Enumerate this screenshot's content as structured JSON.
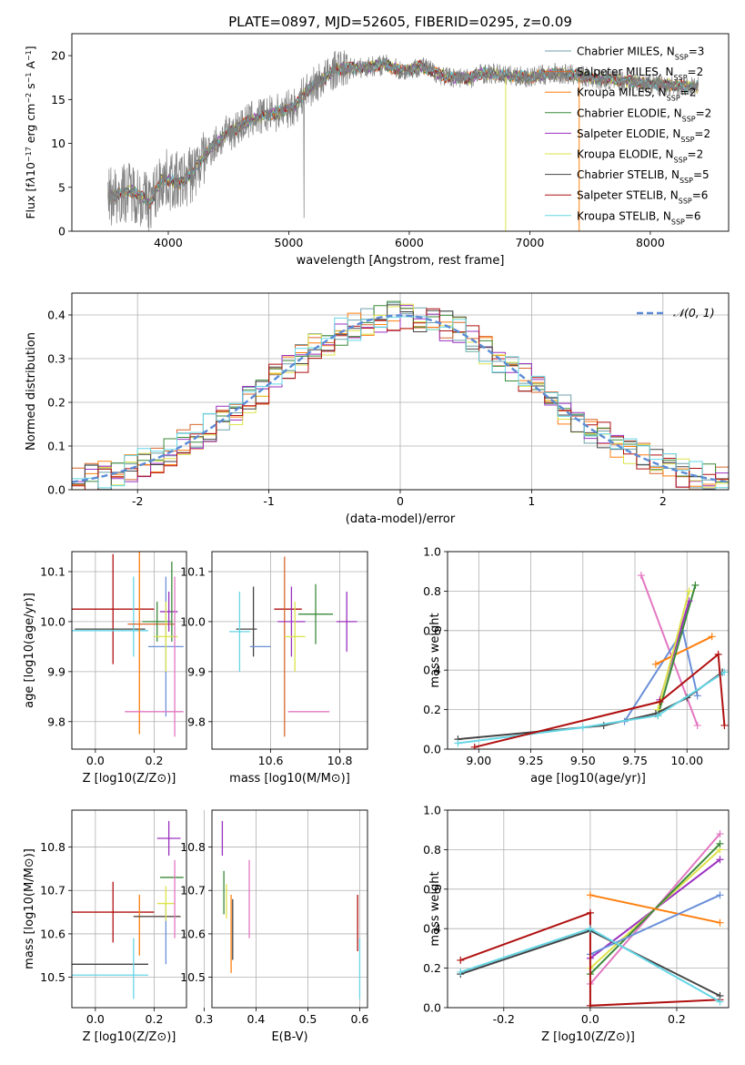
{
  "title": "PLATE=0897, MJD=52605, FIBERID=0295, z=0.09",
  "colors": {
    "Chabrier MILES": "#6fa0a8",
    "Salpeter MILES": "#d7662c",
    "Kroupa MILES": "#ff7f0e",
    "Chabrier ELODIE": "#3a8a3a",
    "Salpeter ELODIE": "#9b30c0",
    "Kroupa ELODIE": "#dde34a",
    "Chabrier STELIB": "#444444",
    "Salpeter STELIB": "#b01010",
    "Kroupa STELIB": "#66d6e6",
    "extra_pink": "#e377c2",
    "extra_blue": "#6a8fd8",
    "extra_lime": "#b5e85a",
    "extra_orange2": "#e07020",
    "spectrum_grey": "#808080"
  },
  "chart_data": [
    {
      "id": "spectrum",
      "type": "line",
      "title": "PLATE=0897, MJD=52605, FIBERID=0295, z=0.09",
      "xlabel": "wavelength [Angstrom, rest frame]",
      "ylabel_html": "Flux [f<tspan font-style='italic'>λ</tspan>10<tspan baseline-shift='super' font-size='8'>−17</tspan> erg cm<tspan baseline-shift='super' font-size='8'>−2</tspan> s<tspan baseline-shift='super' font-size='8'>−1</tspan> A<tspan baseline-shift='super' font-size='8'>−1</tspan>]",
      "xlim": [
        3200,
        8650
      ],
      "ylim": [
        0,
        22.5
      ],
      "xticks": [
        4000,
        5000,
        6000,
        7000,
        8000
      ],
      "yticks": [
        0,
        5,
        10,
        15,
        20
      ],
      "series": [
        {
          "name": "Chabrier MILES",
          "nssp": "3"
        },
        {
          "name": "Salpeter MILES",
          "nssp": "2"
        },
        {
          "name": "Kroupa MILES",
          "nssp": "2"
        },
        {
          "name": "Chabrier ELODIE",
          "nssp": "2"
        },
        {
          "name": "Salpeter ELODIE",
          "nssp": "2"
        },
        {
          "name": "Kroupa ELODIE",
          "nssp": "2"
        },
        {
          "name": "Chabrier STELIB",
          "nssp": "5"
        },
        {
          "name": "Salpeter STELIB",
          "nssp": "6"
        },
        {
          "name": "Kroupa STELIB",
          "nssp": "6"
        }
      ],
      "continuum": [
        [
          3500,
          4.0
        ],
        [
          3700,
          4.6
        ],
        [
          3850,
          3.2
        ],
        [
          3950,
          6.0
        ],
        [
          4100,
          5.5
        ],
        [
          4200,
          6.6
        ],
        [
          4350,
          9.5
        ],
        [
          4500,
          11.2
        ],
        [
          4700,
          12.8
        ],
        [
          4900,
          13.5
        ],
        [
          5050,
          14.2
        ],
        [
          5150,
          16.0
        ],
        [
          5300,
          17.5
        ],
        [
          5400,
          18.5
        ],
        [
          5600,
          18.6
        ],
        [
          5800,
          19.0
        ],
        [
          5950,
          18.2
        ],
        [
          6100,
          18.8
        ],
        [
          6300,
          17.6
        ],
        [
          6500,
          17.4
        ],
        [
          6600,
          18.0
        ],
        [
          6800,
          17.8
        ],
        [
          7000,
          17.5
        ],
        [
          7200,
          18.0
        ],
        [
          7400,
          17.7
        ],
        [
          7600,
          17.3
        ],
        [
          7800,
          17.1
        ],
        [
          8000,
          16.8
        ],
        [
          8200,
          16.6
        ],
        [
          8400,
          16.4
        ]
      ]
    },
    {
      "id": "residuals",
      "type": "histogram",
      "xlabel": "(data-model)/error",
      "ylabel": "Normed distribution",
      "legend": "𝒩(0, 1)",
      "xlim": [
        -2.5,
        2.5
      ],
      "ylim": [
        0,
        0.45
      ],
      "xticks": [
        -2,
        -1,
        0,
        1,
        2
      ],
      "yticks": [
        0.0,
        0.1,
        0.2,
        0.3,
        0.4
      ],
      "bins": 50
    },
    {
      "id": "age_vs_Z",
      "type": "scatter",
      "xlabel": "Z [log10(Z/Z⊙)]",
      "ylabel": "age  [log10(age/yr)]",
      "xlim": [
        -0.08,
        0.31
      ],
      "ylim": [
        9.745,
        10.14
      ],
      "xticks": [
        0.0,
        0.2
      ],
      "yticks": [
        9.8,
        9.9,
        10.0,
        10.1
      ],
      "points": [
        {
          "x": 0.06,
          "y": 10.025,
          "xerr": 0.14,
          "yerr": 0.11,
          "c": "Salpeter STELIB"
        },
        {
          "x": 0.05,
          "y": 9.985,
          "xerr": 0.12,
          "yerr": 0.0,
          "c": "Chabrier STELIB"
        },
        {
          "x": 0.05,
          "y": 9.982,
          "xerr": 0.13,
          "yerr": 0.0,
          "c": "Kroupa STELIB"
        },
        {
          "x": 0.13,
          "y": 10.01,
          "xerr": 0.0,
          "yerr": 0.08,
          "c": "Kroupa STELIB"
        },
        {
          "x": 0.15,
          "y": 9.965,
          "xerr": 0.0,
          "yerr": 0.19,
          "c": "Kroupa MILES"
        },
        {
          "x": 0.19,
          "y": 9.995,
          "xerr": 0.08,
          "yerr": 0.0,
          "c": "Salpeter MILES"
        },
        {
          "x": 0.21,
          "y": 10.0,
          "xerr": 0.05,
          "yerr": 0.04,
          "c": "Chabrier ELODIE"
        },
        {
          "x": 0.24,
          "y": 9.95,
          "xerr": 0.06,
          "yerr": 0.14,
          "c": "extra_blue"
        },
        {
          "x": 0.25,
          "y": 10.02,
          "xerr": 0.03,
          "yerr": 0.04,
          "c": "Salpeter ELODIE"
        },
        {
          "x": 0.26,
          "y": 10.04,
          "xerr": 0.0,
          "yerr": 0.08,
          "c": "Chabrier ELODIE"
        },
        {
          "x": 0.24,
          "y": 9.97,
          "xerr": 0.04,
          "yerr": 0.07,
          "c": "Kroupa ELODIE"
        },
        {
          "x": 0.2,
          "y": 9.82,
          "xerr": 0.1,
          "yerr": 0.0,
          "c": "extra_pink"
        },
        {
          "x": 0.27,
          "y": 9.93,
          "xerr": 0.0,
          "yerr": 0.16,
          "c": "extra_pink"
        }
      ]
    },
    {
      "id": "age_vs_mass",
      "type": "scatter",
      "xlabel": "mass [log10(M/M⊙)]",
      "ylabel": "",
      "xlim": [
        10.43,
        10.88
      ],
      "ylim": [
        9.745,
        10.14
      ],
      "xticks": [
        10.6,
        10.8
      ],
      "yticks": [
        9.8,
        9.9,
        10.0,
        10.1
      ],
      "points": [
        {
          "x": 10.65,
          "y": 10.025,
          "xerr": 0.04,
          "yerr": 0.0,
          "c": "Salpeter STELIB"
        },
        {
          "x": 10.53,
          "y": 9.985,
          "xerr": 0.03,
          "yerr": 0.0,
          "c": "Chabrier STELIB"
        },
        {
          "x": 10.51,
          "y": 9.98,
          "xerr": 0.03,
          "yerr": 0.08,
          "c": "Kroupa STELIB"
        },
        {
          "x": 10.55,
          "y": 10.0,
          "xerr": 0.0,
          "yerr": 0.07,
          "c": "Chabrier STELIB"
        },
        {
          "x": 10.57,
          "y": 9.95,
          "xerr": 0.03,
          "yerr": 0.0,
          "c": "extra_blue"
        },
        {
          "x": 10.64,
          "y": 9.95,
          "xerr": 0.0,
          "yerr": 0.18,
          "c": "Salpeter MILES"
        },
        {
          "x": 10.66,
          "y": 10.0,
          "xerr": 0.04,
          "yerr": 0.07,
          "c": "Salpeter ELODIE"
        },
        {
          "x": 10.67,
          "y": 9.97,
          "xerr": 0.03,
          "yerr": 0.07,
          "c": "Kroupa ELODIE"
        },
        {
          "x": 10.73,
          "y": 10.015,
          "xerr": 0.05,
          "yerr": 0.06,
          "c": "Chabrier ELODIE"
        },
        {
          "x": 10.82,
          "y": 10.0,
          "xerr": 0.03,
          "yerr": 0.06,
          "c": "Salpeter ELODIE"
        },
        {
          "x": 10.71,
          "y": 9.82,
          "xerr": 0.06,
          "yerr": 0.0,
          "c": "extra_pink"
        }
      ]
    },
    {
      "id": "weight_vs_age",
      "type": "line",
      "xlabel": "age  [log10(age/yr)]",
      "ylabel": "mass weight",
      "xlim": [
        8.85,
        10.2
      ],
      "ylim": [
        0,
        1.0
      ],
      "xticks": [
        9.0,
        9.25,
        9.5,
        9.75,
        10.0
      ],
      "yticks": [
        0.0,
        0.2,
        0.4,
        0.6,
        0.8,
        1.0
      ],
      "series": [
        {
          "c": "extra_pink",
          "x": [
            9.78,
            10.05
          ],
          "y": [
            0.88,
            0.12
          ]
        },
        {
          "c": "extra_blue",
          "x": [
            9.7,
            9.98,
            10.05
          ],
          "y": [
            0.14,
            0.6,
            0.27
          ]
        },
        {
          "c": "Kroupa MILES",
          "x": [
            9.85,
            10.12
          ],
          "y": [
            0.43,
            0.57
          ]
        },
        {
          "c": "Chabrier ELODIE",
          "x": [
            9.86,
            10.04
          ],
          "y": [
            0.17,
            0.83
          ]
        },
        {
          "c": "Salpeter ELODIE",
          "x": [
            9.87,
            10.01
          ],
          "y": [
            0.25,
            0.75
          ]
        },
        {
          "c": "Kroupa ELODIE",
          "x": [
            9.86,
            10.01
          ],
          "y": [
            0.2,
            0.8
          ]
        },
        {
          "c": "Chabrier STELIB",
          "x": [
            8.9,
            9.6,
            9.85,
            10.0,
            10.17
          ],
          "y": [
            0.05,
            0.12,
            0.18,
            0.26,
            0.39
          ]
        },
        {
          "c": "Kroupa STELIB",
          "x": [
            8.9,
            9.5,
            9.86,
            10.18
          ],
          "y": [
            0.03,
            0.11,
            0.17,
            0.39
          ]
        },
        {
          "c": "Salpeter STELIB",
          "x": [
            8.98,
            9.87,
            10.15,
            10.18
          ],
          "y": [
            0.01,
            0.24,
            0.48,
            0.12
          ]
        }
      ]
    },
    {
      "id": "mass_vs_Z",
      "type": "scatter",
      "xlabel": "Z [log10(Z/Z⊙)]",
      "ylabel": "mass [log10(M/M⊙)]",
      "xlim": [
        -0.08,
        0.31
      ],
      "ylim": [
        10.43,
        10.885
      ],
      "xticks": [
        0.0,
        0.2
      ],
      "yticks": [
        10.5,
        10.6,
        10.7,
        10.8
      ],
      "points": [
        {
          "x": 0.06,
          "y": 10.65,
          "xerr": 0.14,
          "yerr": 0.07,
          "c": "Salpeter STELIB"
        },
        {
          "x": 0.05,
          "y": 10.53,
          "xerr": 0.13,
          "yerr": 0.0,
          "c": "Chabrier STELIB"
        },
        {
          "x": 0.05,
          "y": 10.505,
          "xerr": 0.13,
          "yerr": 0.0,
          "c": "Kroupa STELIB"
        },
        {
          "x": 0.13,
          "y": 10.52,
          "xerr": 0.0,
          "yerr": 0.07,
          "c": "Kroupa STELIB"
        },
        {
          "x": 0.15,
          "y": 10.62,
          "xerr": 0.0,
          "yerr": 0.07,
          "c": "Kroupa MILES"
        },
        {
          "x": 0.21,
          "y": 10.64,
          "xerr": 0.08,
          "yerr": 0.0,
          "c": "Salpeter MILES"
        },
        {
          "x": 0.21,
          "y": 10.64,
          "xerr": 0.08,
          "yerr": 0.0,
          "c": "Chabrier STELIB"
        },
        {
          "x": 0.24,
          "y": 10.6,
          "xerr": 0.0,
          "yerr": 0.07,
          "c": "extra_blue"
        },
        {
          "x": 0.25,
          "y": 10.82,
          "xerr": 0.04,
          "yerr": 0.04,
          "c": "Salpeter ELODIE"
        },
        {
          "x": 0.26,
          "y": 10.73,
          "xerr": 0.04,
          "yerr": 0.0,
          "c": "Chabrier ELODIE"
        },
        {
          "x": 0.24,
          "y": 10.67,
          "xerr": 0.03,
          "yerr": 0.04,
          "c": "Kroupa ELODIE"
        },
        {
          "x": 0.27,
          "y": 10.68,
          "xerr": 0.0,
          "yerr": 0.09,
          "c": "extra_pink"
        }
      ]
    },
    {
      "id": "mass_vs_ebv",
      "type": "scatter",
      "xlabel": "E(B-V)",
      "ylabel": "",
      "xlim": [
        0.315,
        0.615
      ],
      "ylim": [
        10.43,
        10.885
      ],
      "xticks": [
        0.3,
        0.4,
        0.5,
        0.6
      ],
      "yticks": [
        10.5,
        10.6,
        10.7,
        10.8
      ],
      "points": [
        {
          "x": 0.335,
          "y": 10.82,
          "xerr": 0.0,
          "yerr": 0.04,
          "c": "Salpeter ELODIE"
        },
        {
          "x": 0.338,
          "y": 10.695,
          "xerr": 0.0,
          "yerr": 0.05,
          "c": "Chabrier ELODIE"
        },
        {
          "x": 0.343,
          "y": 10.675,
          "xerr": 0.0,
          "yerr": 0.04,
          "c": "Kroupa ELODIE"
        },
        {
          "x": 0.352,
          "y": 10.6,
          "xerr": 0.0,
          "yerr": 0.09,
          "c": "Kroupa MILES"
        },
        {
          "x": 0.355,
          "y": 10.61,
          "xerr": 0.0,
          "yerr": 0.07,
          "c": "Chabrier STELIB"
        },
        {
          "x": 0.387,
          "y": 10.68,
          "xerr": 0.0,
          "yerr": 0.09,
          "c": "extra_pink"
        },
        {
          "x": 0.596,
          "y": 10.625,
          "xerr": 0.0,
          "yerr": 0.065,
          "c": "Salpeter STELIB"
        },
        {
          "x": 0.6,
          "y": 10.52,
          "xerr": 0.0,
          "yerr": 0.07,
          "c": "Kroupa STELIB"
        }
      ]
    },
    {
      "id": "weight_vs_Z",
      "type": "line",
      "xlabel": "Z [log10(Z/Z⊙)]",
      "ylabel": "mass weight",
      "xlim": [
        -0.33,
        0.32
      ],
      "ylim": [
        0,
        1.0
      ],
      "xticks": [
        -0.2,
        0.0,
        0.2
      ],
      "yticks": [
        0.0,
        0.2,
        0.4,
        0.6,
        0.8,
        1.0
      ],
      "series": [
        {
          "c": "extra_pink",
          "x": [
            0.0,
            0.3
          ],
          "y": [
            0.12,
            0.88
          ]
        },
        {
          "c": "Salpeter ELODIE",
          "x": [
            0.0,
            0.3
          ],
          "y": [
            0.25,
            0.75
          ]
        },
        {
          "c": "Kroupa ELODIE",
          "x": [
            0.0,
            0.3
          ],
          "y": [
            0.2,
            0.8
          ]
        },
        {
          "c": "Chabrier ELODIE",
          "x": [
            0.0,
            0.3
          ],
          "y": [
            0.17,
            0.83
          ]
        },
        {
          "c": "Kroupa MILES",
          "x": [
            0.0,
            0.3
          ],
          "y": [
            0.57,
            0.43
          ]
        },
        {
          "c": "extra_blue",
          "x": [
            0.0,
            0.3
          ],
          "y": [
            0.27,
            0.57
          ]
        },
        {
          "c": "Salpeter STELIB",
          "x": [
            -0.3,
            0.0,
            0.0,
            0.3
          ],
          "y": [
            0.24,
            0.48,
            0.01,
            0.04
          ]
        },
        {
          "c": "Chabrier STELIB",
          "x": [
            -0.3,
            0.0,
            0.0,
            0.3
          ],
          "y": [
            0.17,
            0.39,
            0.39,
            0.06
          ]
        },
        {
          "c": "Kroupa STELIB",
          "x": [
            -0.3,
            0.0,
            0.0,
            0.3
          ],
          "y": [
            0.18,
            0.4,
            0.4,
            0.03
          ]
        }
      ]
    }
  ]
}
